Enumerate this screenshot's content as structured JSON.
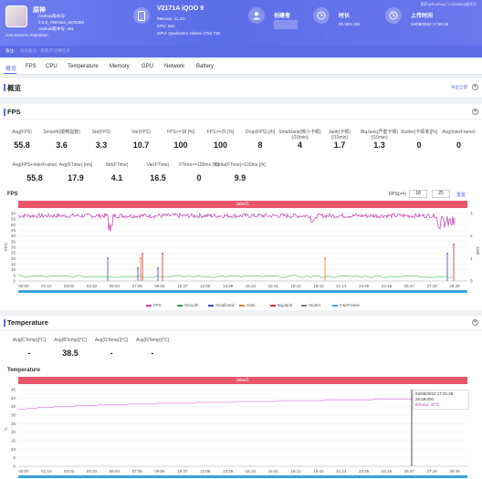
{
  "header": {
    "app_name": "原神",
    "package_lines": [
      "Android版本号:",
      "2.0.0_7997424_8078355",
      "Android版本号: 481"
    ],
    "package": "com.miHoYo.Yuanshen",
    "device_name": "V2171A iQOO 9",
    "memory": "Memory: 11.1G",
    "cpu": "CPU: taro",
    "gpu": "GPU: Qualcomm Adreno (TM) 730",
    "creator_label": "创建者",
    "duration_label": "时长",
    "duration_value": "0h 30m 10s",
    "upload_label": "上传时间",
    "upload_value": "04/08/2022 17:55:18",
    "top_right": "您好@PerfDog7.2.2(89680)版本号"
  },
  "subbar": {
    "label": "备注:",
    "text": "添加备注 · 关键点/注释信息"
  },
  "tabs": [
    "概览",
    "FPS",
    "CPU",
    "Temperature",
    "Memory",
    "GPU",
    "Network",
    "Battery"
  ],
  "overview": {
    "title": "概览",
    "export_label": "导出全部"
  },
  "fps_section": {
    "title": "FPS",
    "row1": [
      {
        "label": "Avg(FPS)",
        "value": "55.8"
      },
      {
        "label": "Smooth(顺畅指数)",
        "value": "3.6"
      },
      {
        "label": "Std(FPS)",
        "value": "3.3"
      },
      {
        "label": "Var(FPS)",
        "value": "10.7"
      },
      {
        "label": "FPS>=18 [%]",
        "value": "100"
      },
      {
        "label": "FPS>=25 [%]",
        "value": "100"
      },
      {
        "label": "Drop(FPS) [/h]",
        "value": "8"
      },
      {
        "label": "SmallJank(微小卡顿)\n(/10min)",
        "value": "4"
      },
      {
        "label": "Jank(卡顿)\n(/10min)",
        "value": "1.7"
      },
      {
        "label": "BigJank(严重卡顿)\n(/10min)",
        "value": "1.3"
      },
      {
        "label": "Stutter(卡顿率)[%]",
        "value": "0"
      },
      {
        "label": "Avg(InterFrame)",
        "value": "0"
      }
    ],
    "row2": [
      {
        "label": "Avg(FPS+InterFrame)",
        "value": "55.8"
      },
      {
        "label": "Avg(FTime) [ms]",
        "value": "17.9"
      },
      {
        "label": "Std(FTime)",
        "value": "4.1"
      },
      {
        "label": "Var(FTime)",
        "value": "16.5"
      },
      {
        "label": "FTime>=100ms [%]",
        "value": "0"
      },
      {
        "label": "Delta(FTime)>100ms [/h]",
        "value": "9.9"
      }
    ]
  },
  "fps_chart": {
    "title": "FPS",
    "range_label": "FPS(>=)",
    "range_a": "18",
    "range_b": "25",
    "reset_label": "重置",
    "band_label": "label1",
    "legend": [
      "FPS",
      "Smooth",
      "SmallJank",
      "Jank",
      "BigJank",
      "Stutter",
      "InterFrame"
    ],
    "legend_colors": [
      "#c03fb0",
      "#2e9e3a",
      "#3a4bd0",
      "#f07a2a",
      "#d83030",
      "#7a7a7a",
      "#3aa0e0"
    ],
    "yaxis_left_label": "FPS",
    "yaxis_right_label": "Jank",
    "yticks": [
      "60",
      "55",
      "50",
      "45",
      "40",
      "35",
      "30",
      "25",
      "20",
      "15",
      "10",
      "5",
      "0"
    ],
    "yticks_right": [
      "3",
      "2",
      "1",
      "0"
    ],
    "xticks": [
      "00:00",
      "01:10",
      "03:02",
      "04:33",
      "06:04",
      "07:35",
      "09:06",
      "10:37",
      "12:08",
      "13:39",
      "15:10",
      "16:41",
      "18:12",
      "19:43",
      "21:14",
      "22:45",
      "24:16",
      "25:47",
      "27:18",
      "28:49"
    ]
  },
  "temp_section": {
    "title": "Temperature",
    "metrics": [
      {
        "label": "Avg(CTemp)[°C]",
        "value": "-"
      },
      {
        "label": "Avg(BTemp)[°C]",
        "value": "38.5"
      },
      {
        "label": "Avg(GTemp)[°C]",
        "value": "-"
      },
      {
        "label": "Avg(NTemp)[°C]",
        "value": "-"
      }
    ]
  },
  "temp_chart": {
    "title": "Temperature",
    "band_label": "label1",
    "yaxis_label": "°C",
    "yticks": [
      "45",
      "40",
      "35",
      "30",
      "25",
      "20",
      "15",
      "10",
      "5",
      "0"
    ],
    "xticks": [
      "00:00",
      "01:10",
      "03:02",
      "04:33",
      "06:04",
      "07:35",
      "09:06",
      "10:37",
      "12:08",
      "13:39",
      "15:10",
      "16:41",
      "18:12",
      "19:43",
      "21:14",
      "22:45",
      "24:16",
      "25:47",
      "27:18",
      "28:49"
    ],
    "tooltip_date": "04/08/2022 17:31:36",
    "tooltip_time": "26:59.000",
    "tooltip_value": "BTemp: 40℃"
  }
}
